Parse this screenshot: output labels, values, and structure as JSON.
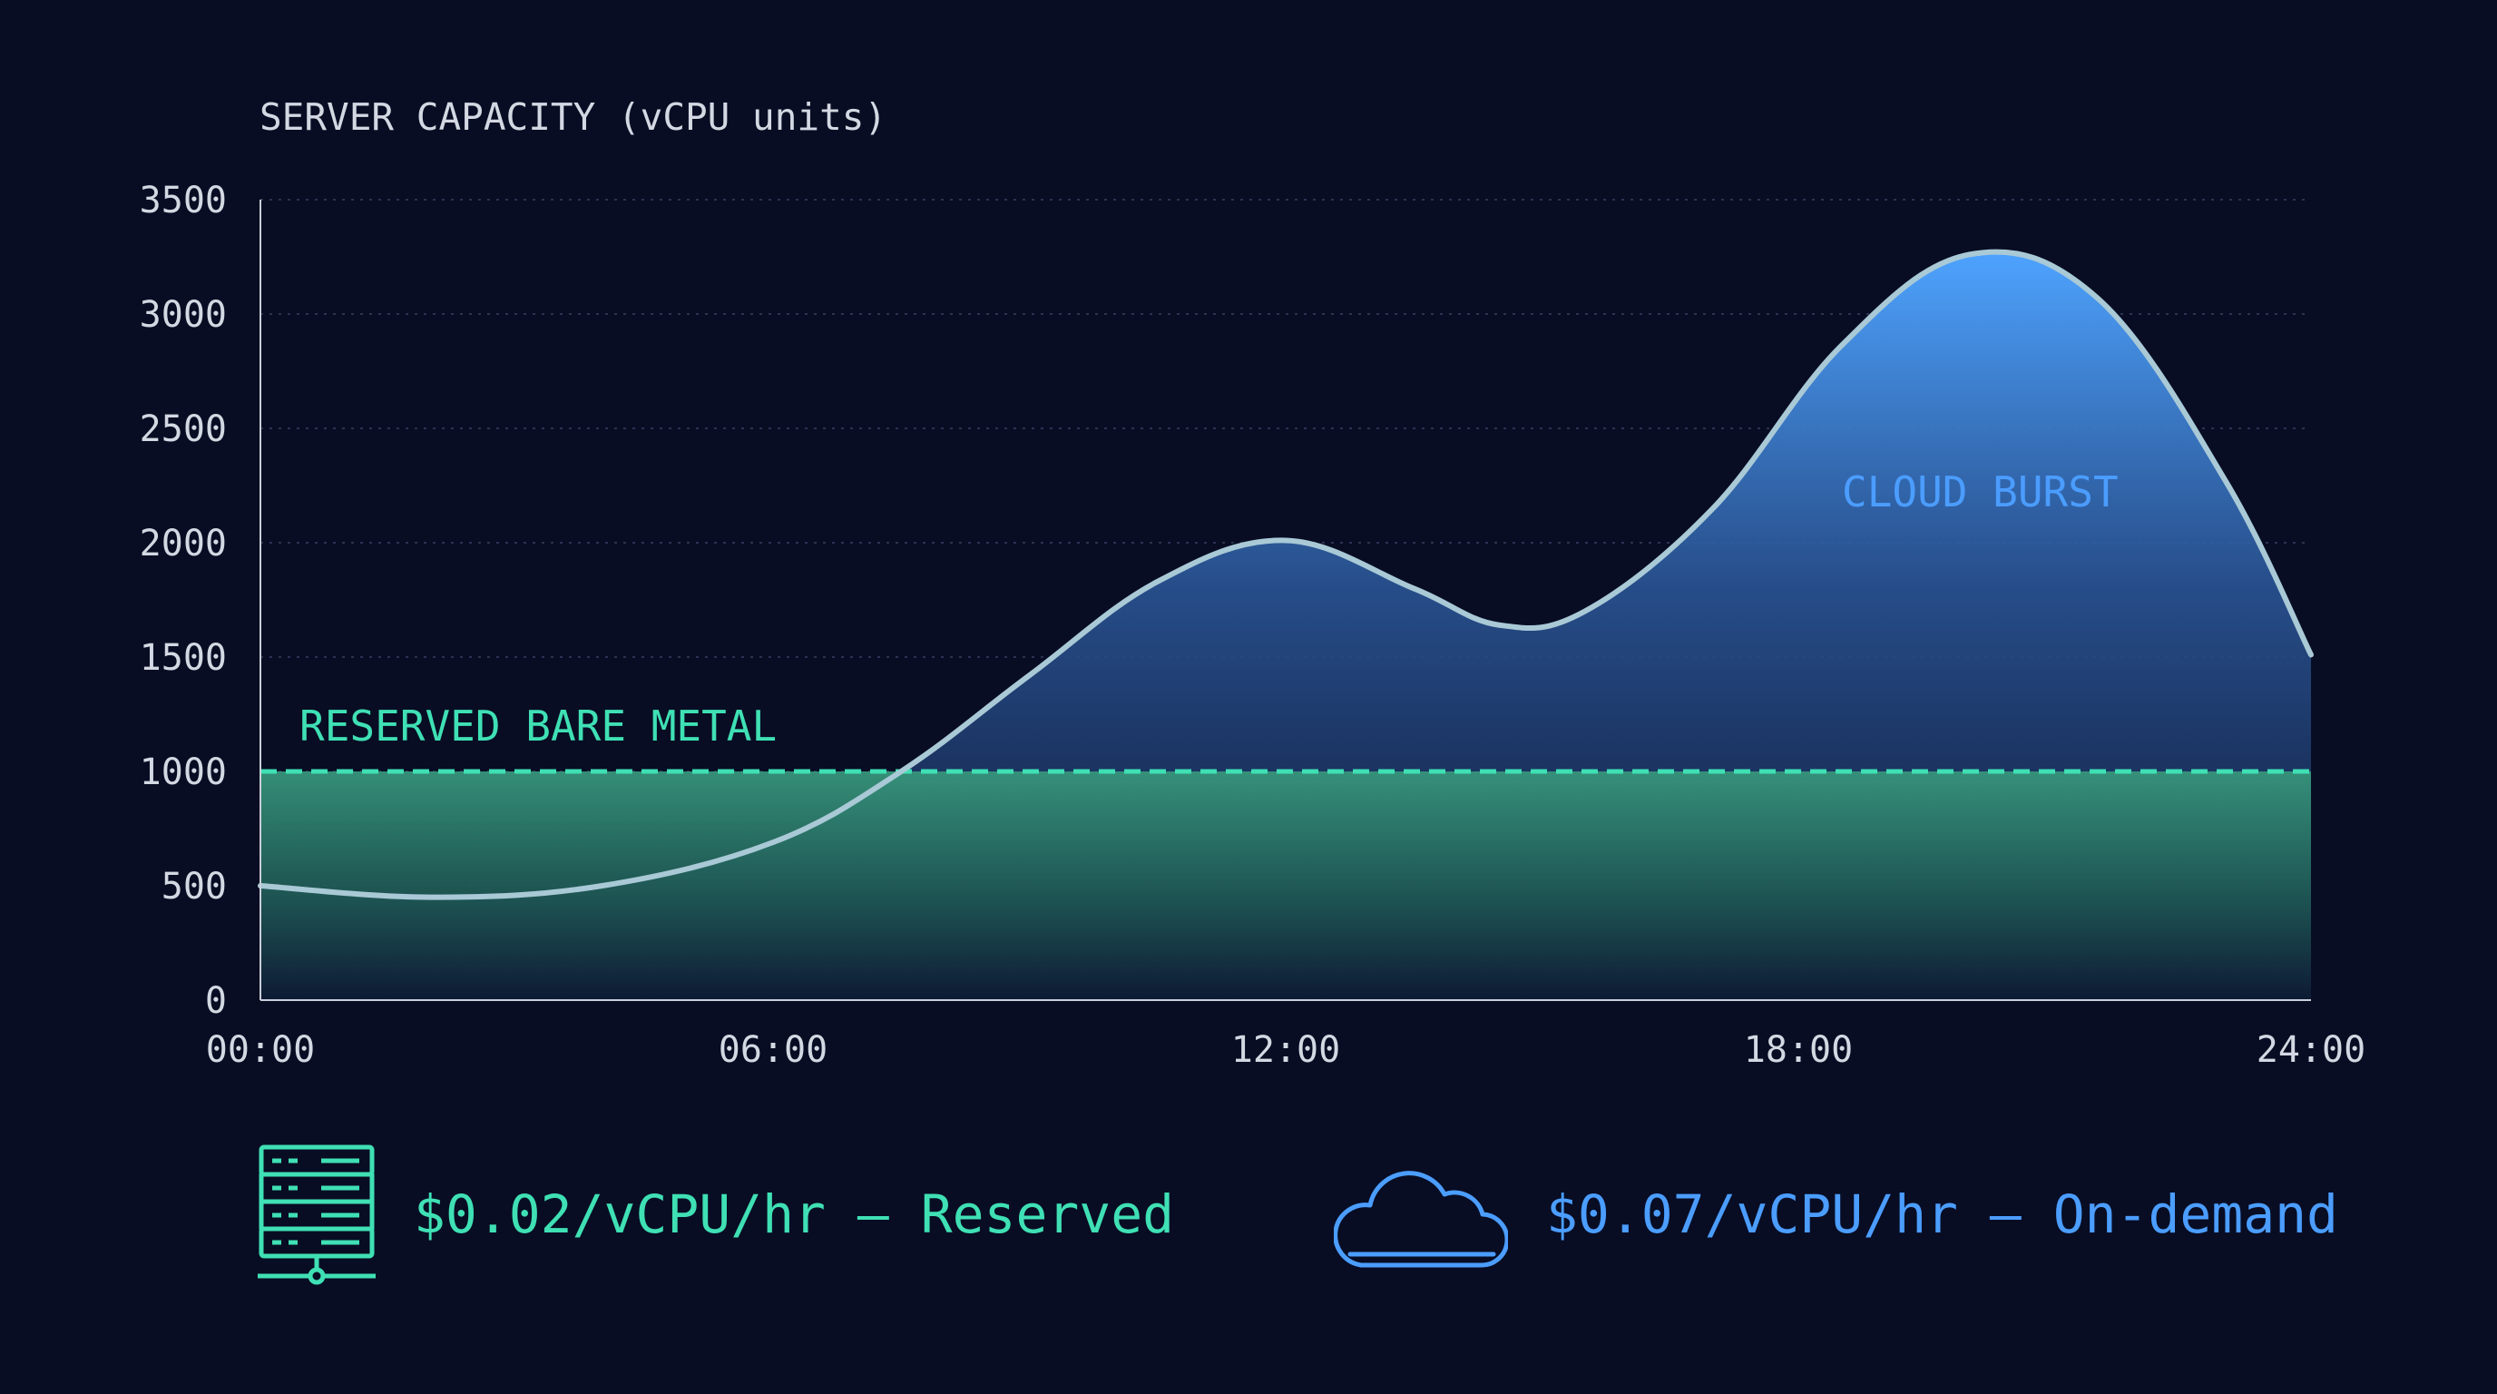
{
  "chart_data": {
    "type": "area",
    "title": "SERVER CAPACITY (vCPU units)",
    "xlabel": "",
    "ylabel": "SERVER CAPACITY (vCPU units)",
    "ylim": [
      0,
      3500
    ],
    "xlim": [
      0,
      24
    ],
    "y_ticks": [
      0,
      500,
      1000,
      1500,
      2000,
      2500,
      3000,
      3500
    ],
    "y_tick_labels": [
      "0",
      "500",
      "1000",
      "1500",
      "2000",
      "2500",
      "3000",
      "3500"
    ],
    "x_ticks": [
      0,
      6,
      12,
      18,
      24
    ],
    "x_tick_labels": [
      "00:00",
      "06:00",
      "12:00",
      "18:00",
      "24:00"
    ],
    "grid": true,
    "series": [
      {
        "name": "RESERVED BARE METAL",
        "color": "#3fe0b4",
        "style": "dashed-threshold",
        "x": [
          0,
          24
        ],
        "values": [
          1000,
          1000
        ]
      },
      {
        "name": "CLOUD BURST",
        "color": "#4b9dff",
        "style": "demand-curve",
        "x": [
          0,
          2,
          4,
          6,
          7.5,
          9,
          10.5,
          12,
          13.5,
          14.5,
          15.5,
          17,
          18.5,
          20,
          21.5,
          23,
          24
        ],
        "values": [
          500,
          450,
          500,
          690,
          1000,
          1420,
          1830,
          2010,
          1800,
          1640,
          1700,
          2150,
          2860,
          3260,
          3070,
          2270,
          1510
        ]
      }
    ],
    "annotations": [
      "RESERVED BARE METAL",
      "CLOUD BURST"
    ]
  },
  "legend": {
    "reserved": {
      "icon": "server-rack-icon",
      "text": "$0.02/vCPU/hr — Reserved",
      "color": "#3fe0b4"
    },
    "ondemand": {
      "icon": "cloud-icon",
      "text": "$0.07/vCPU/hr — On-demand",
      "color": "#4b9dff"
    }
  },
  "colors": {
    "background": "#080d24",
    "curve": "#a9c9d6",
    "axis_text": "#d4d8e2",
    "grid": "#2b3352"
  }
}
